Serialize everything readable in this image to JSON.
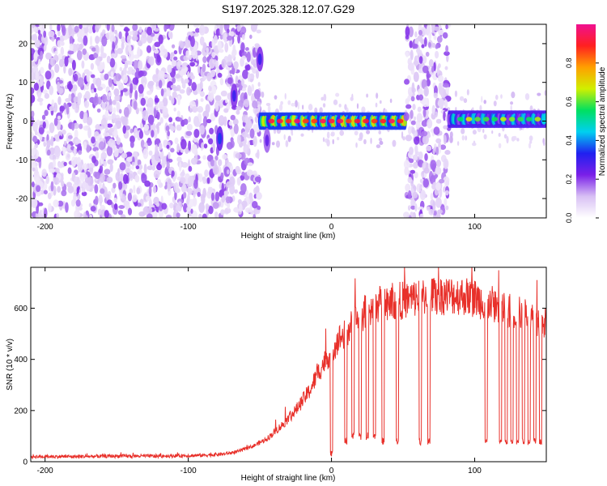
{
  "title": "S197.2025.328.12.07.G29",
  "chart_data": [
    {
      "type": "heatmap",
      "title": "S197.2025.328.12.07.G29",
      "xlabel": "Height of straight line (km)",
      "ylabel": "Frequency (Hz)",
      "xlim": [
        -210,
        150
      ],
      "ylim": [
        -25,
        25
      ],
      "xticks": [
        -200,
        -100,
        0,
        100
      ],
      "yticks": [
        -20,
        -10,
        0,
        10,
        20
      ],
      "colorbar": {
        "label": "Normalized spectral amplitude",
        "range": [
          0,
          1
        ],
        "ticks": [
          0.0,
          0.2,
          0.4,
          0.6,
          0.8
        ],
        "colors": [
          "#ffffff",
          "#d8c0f4",
          "#7a20e8",
          "#2020f0",
          "#00d0f0",
          "#00e060",
          "#d0f000",
          "#ffa000",
          "#ff2020",
          "#f01090"
        ]
      },
      "regions": [
        {
          "x": [
            -210,
            -50
          ],
          "freq_range": [
            -25,
            25
          ],
          "amplitude": 0.15,
          "pattern": "broadband noise"
        },
        {
          "x": [
            -50,
            52
          ],
          "freq_center": 0,
          "amplitude": 0.85,
          "pattern": "narrow line"
        },
        {
          "x": [
            52,
            82
          ],
          "freq_range": [
            -25,
            25
          ],
          "amplitude": 0.15,
          "pattern": "broadband noise"
        },
        {
          "x": [
            82,
            150
          ],
          "freq_center": 0.5,
          "amplitude": 0.55,
          "pattern": "narrow line"
        }
      ],
      "features": [
        {
          "x": -78,
          "freq": -4.5,
          "amplitude": 0.35
        },
        {
          "x": -68,
          "freq": 6.5,
          "amplitude": 0.3
        },
        {
          "x": -50,
          "freq": 16,
          "amplitude": 0.3
        },
        {
          "x": -45,
          "freq": -5,
          "amplitude": 0.25
        }
      ]
    },
    {
      "type": "line",
      "xlabel": "Height of straight line (km)",
      "ylabel": "SNR (10 * v/v)",
      "xlim": [
        -210,
        150
      ],
      "ylim": [
        0,
        760
      ],
      "xticks": [
        -200,
        -100,
        0,
        100
      ],
      "yticks": [
        0,
        200,
        400,
        600
      ],
      "series": [
        {
          "name": "SNR",
          "color": "#e8302a",
          "x": [
            -210,
            -180,
            -150,
            -120,
            -90,
            -75,
            -65,
            -55,
            -45,
            -35,
            -25,
            -15,
            -10,
            -5,
            0,
            5,
            10,
            15,
            20,
            25,
            30,
            40,
            50,
            60,
            70,
            80,
            90,
            100,
            110,
            120,
            130,
            140,
            150
          ],
          "values": [
            20,
            20,
            22,
            22,
            25,
            30,
            40,
            60,
            90,
            140,
            200,
            280,
            340,
            390,
            430,
            480,
            500,
            540,
            570,
            590,
            610,
            630,
            630,
            640,
            650,
            650,
            650,
            640,
            620,
            600,
            580,
            560,
            540
          ]
        }
      ],
      "dropouts": [
        {
          "x": 0,
          "value": 30
        },
        {
          "x": 10,
          "value": 80
        },
        {
          "x": 15,
          "value": 100
        },
        {
          "x": 20,
          "value": 100
        },
        {
          "x": 25,
          "value": 100
        },
        {
          "x": 30,
          "value": 100
        },
        {
          "x": 36,
          "value": 80
        },
        {
          "x": 46,
          "value": 80
        },
        {
          "x": 62,
          "value": 80
        },
        {
          "x": 68,
          "value": 80
        },
        {
          "x": 108,
          "value": 80
        },
        {
          "x": 118,
          "value": 80
        },
        {
          "x": 122,
          "value": 80
        },
        {
          "x": 126,
          "value": 80
        },
        {
          "x": 130,
          "value": 80
        },
        {
          "x": 134,
          "value": 80
        },
        {
          "x": 138,
          "value": 80
        },
        {
          "x": 142,
          "value": 80
        },
        {
          "x": 146,
          "value": 80
        }
      ]
    }
  ]
}
